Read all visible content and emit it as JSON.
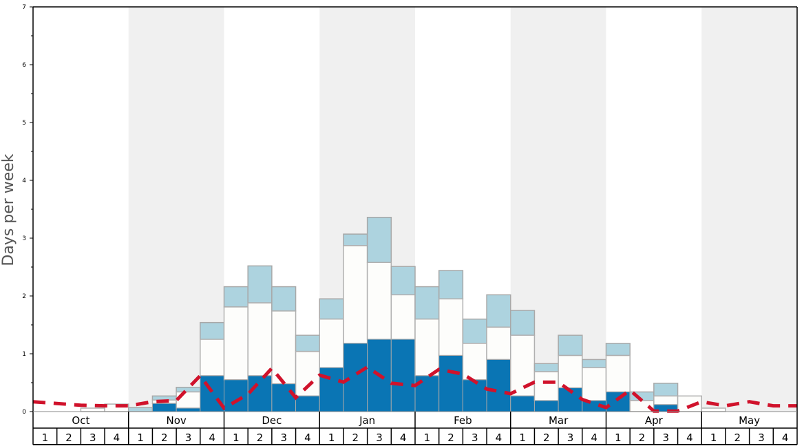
{
  "chart_data": {
    "type": "bar",
    "stacked": true,
    "ylabel": "Days per week",
    "ylim": [
      0,
      7
    ],
    "yticks": [
      "0",
      "1",
      "2",
      "3",
      "4",
      "5",
      "6",
      "7"
    ],
    "months": [
      "Oct",
      "Nov",
      "Dec",
      "Jan",
      "Feb",
      "Mar",
      "Apr",
      "May"
    ],
    "week_labels": [
      "1",
      "2",
      "3",
      "4"
    ],
    "shaded_months": [
      "Nov",
      "Jan",
      "Mar",
      "May"
    ],
    "series": [
      {
        "name": "dark",
        "color": "#0a75b4",
        "values": [
          0,
          0,
          0,
          0,
          0,
          0.14,
          0.06,
          0.62,
          0.55,
          0.62,
          0.48,
          0.27,
          0.76,
          1.18,
          1.25,
          1.25,
          0.62,
          0.97,
          0.55,
          0.9,
          0.27,
          0.19,
          0.41,
          0.19,
          0.34,
          0,
          0.12,
          0,
          0,
          0,
          0,
          0
        ]
      },
      {
        "name": "white",
        "color": "#fdfdfb",
        "values_top": [
          0,
          0,
          0.06,
          0.13,
          0,
          0.2,
          0.34,
          1.25,
          1.81,
          1.88,
          1.74,
          1.04,
          1.6,
          2.87,
          2.58,
          2.02,
          1.6,
          1.95,
          1.18,
          1.46,
          1.32,
          0.69,
          0.97,
          0.76,
          0.97,
          0.19,
          0.27,
          0.27,
          0.06,
          0,
          0,
          0
        ]
      },
      {
        "name": "light",
        "color": "#add3df",
        "values_top": [
          0,
          0,
          0.06,
          0.13,
          0.07,
          0.27,
          0.42,
          1.54,
          2.16,
          2.52,
          2.16,
          1.32,
          1.95,
          3.07,
          3.36,
          2.51,
          2.16,
          2.44,
          1.6,
          2.02,
          1.75,
          0.83,
          1.32,
          0.9,
          1.18,
          0.34,
          0.49,
          0.27,
          0.06,
          0,
          0,
          0
        ]
      }
    ],
    "average_line": {
      "color": "#d0122b",
      "style": "dashed",
      "values_at_week_boundaries": [
        0.17,
        0.14,
        0.11,
        0.1,
        0.1,
        0.17,
        0.19,
        0.62,
        0.06,
        0.3,
        0.75,
        0.24,
        0.63,
        0.51,
        0.77,
        0.49,
        0.45,
        0.73,
        0.65,
        0.39,
        0.31,
        0.51,
        0.51,
        0.21,
        0.07,
        0.37,
        0.01,
        0.01,
        0.17,
        0.1,
        0.17,
        0.1,
        0.1
      ]
    }
  }
}
